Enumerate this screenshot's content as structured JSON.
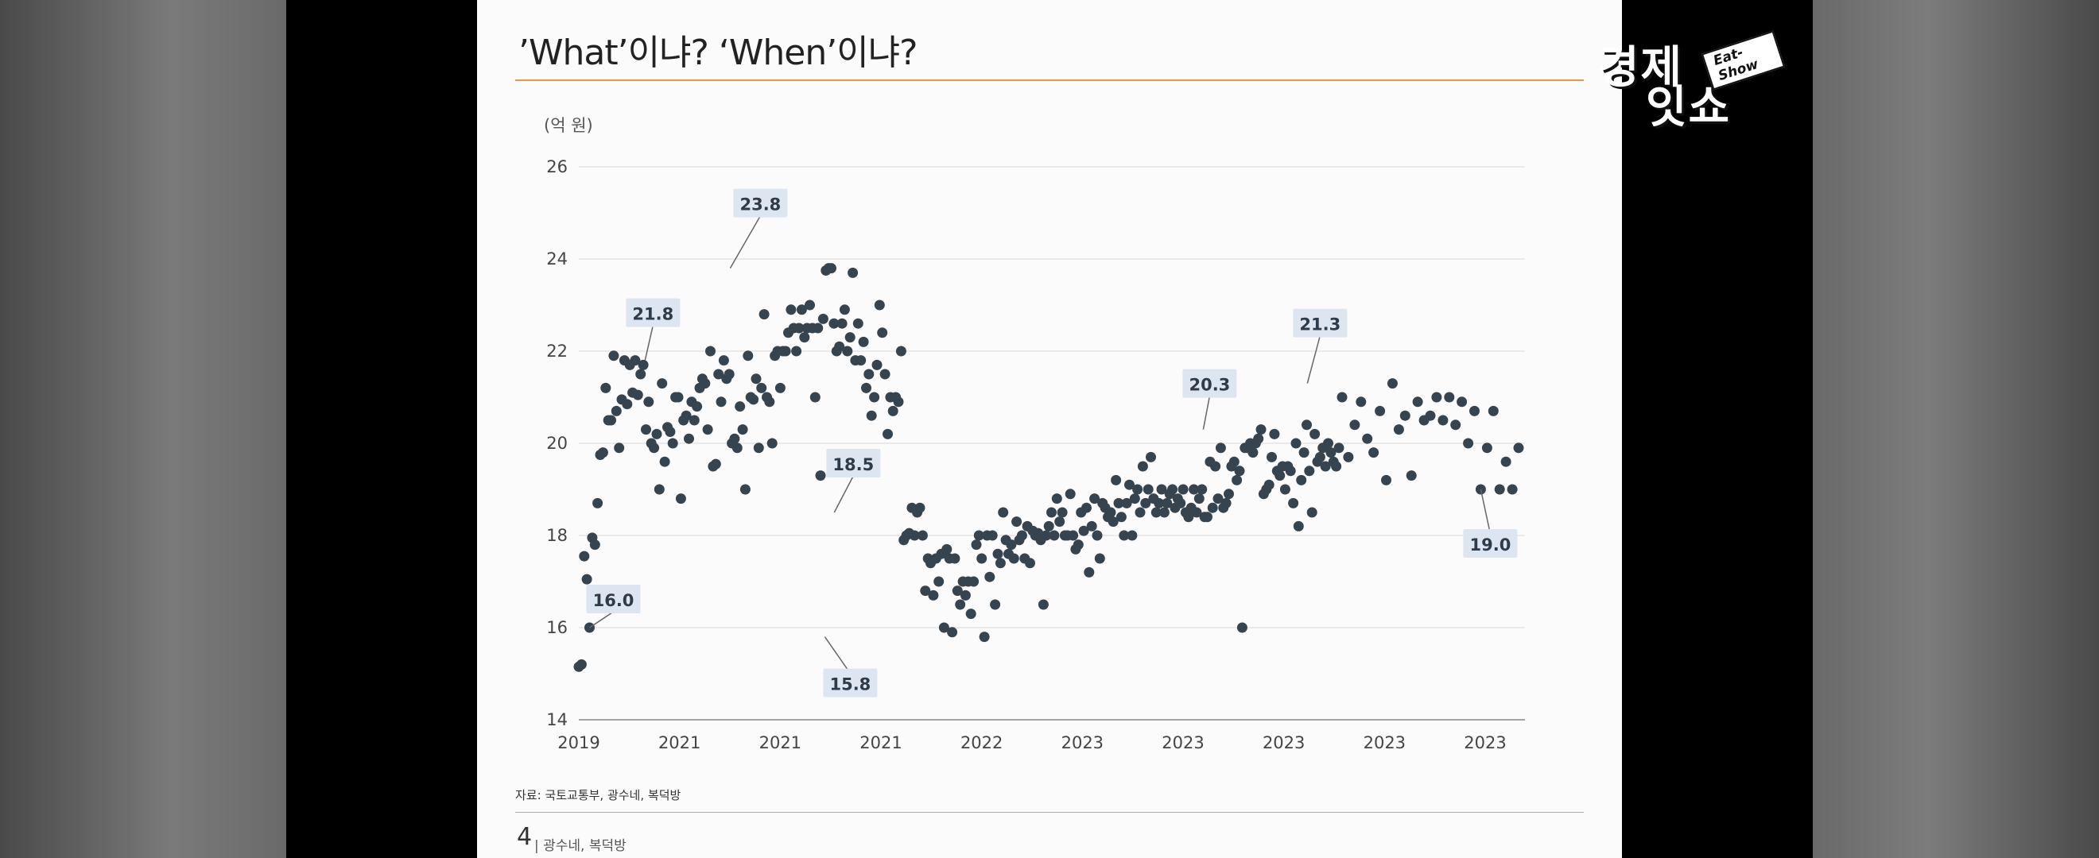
{
  "slide": {
    "title": "’What’이냐? ‘When’이냐?",
    "unit_label": "(억 원)",
    "source": "자료: 국토교통부, 광수네, 복덕방",
    "page_number": "4",
    "footer_text": "| 광수네, 복덕방"
  },
  "logo": {
    "line1": "경제",
    "line2": "잇쇼",
    "badge": "Eat-Show"
  },
  "colors": {
    "accent_rule": "#e39a4b",
    "point": "#36444f",
    "label_bg": "#dde5f1",
    "grid": "#d9d9d9"
  },
  "chart_data": {
    "type": "scatter",
    "title": "",
    "xlabel": "",
    "ylabel": "(억 원)",
    "ylim": [
      14,
      26
    ],
    "yticks": [
      14,
      16,
      18,
      20,
      22,
      24,
      26
    ],
    "xtick_labels": [
      "2019",
      "2021",
      "2021",
      "2021",
      "2022",
      "2023",
      "2023",
      "2023",
      "2023",
      "2023"
    ],
    "grid": "horizontal",
    "x_index_range": [
      0,
      288
    ],
    "points_y": [
      15.15,
      15.2,
      17.55,
      17.05,
      16.0,
      17.95,
      17.8,
      18.7,
      19.75,
      19.8,
      21.2,
      20.5,
      20.5,
      21.9,
      20.7,
      19.9,
      20.95,
      21.8,
      20.85,
      21.7,
      21.1,
      21.8,
      21.05,
      21.5,
      21.7,
      20.3,
      20.9,
      20.0,
      19.9,
      20.2,
      19.0,
      21.3,
      19.6,
      20.35,
      20.25,
      20.0,
      21.0,
      21.0,
      18.8,
      20.5,
      20.6,
      20.1,
      20.9,
      20.5,
      20.8,
      21.2,
      21.4,
      21.3,
      20.3,
      22.0,
      19.5,
      19.55,
      21.5,
      20.9,
      21.8,
      21.4,
      21.5,
      20.0,
      20.1,
      19.9,
      20.8,
      20.3,
      19.0,
      21.9,
      21.0,
      20.95,
      21.4,
      19.9,
      21.2,
      22.8,
      21.0,
      20.9,
      20.0,
      21.9,
      22.0,
      21.2,
      22.0,
      22.0,
      22.4,
      22.9,
      22.5,
      22.0,
      22.5,
      22.9,
      22.3,
      22.5,
      23.0,
      22.5,
      21.0,
      22.5,
      19.3,
      22.7,
      23.75,
      23.8,
      23.8,
      22.6,
      22.0,
      22.1,
      22.6,
      22.9,
      22.0,
      22.3,
      23.7,
      21.8,
      22.6,
      21.8,
      22.2,
      21.2,
      21.5,
      20.6,
      21.0,
      21.7,
      23.0,
      22.4,
      21.5,
      20.2,
      21.0,
      20.7,
      21.0,
      20.9,
      22.0,
      17.9,
      18.0,
      18.05,
      18.6,
      18.0,
      18.5,
      18.6,
      18.0,
      16.8,
      17.5,
      17.4,
      16.7,
      17.5,
      17.0,
      17.6,
      16.0,
      17.7,
      17.5,
      15.9,
      17.5,
      16.8,
      16.5,
      17.0,
      16.7,
      17.0,
      16.3,
      17.0,
      17.8,
      18.0,
      17.5,
      15.8,
      18.0,
      17.1,
      18.0,
      16.5,
      17.6,
      17.4,
      18.5,
      17.9,
      17.6,
      17.8,
      17.5,
      18.3,
      17.9,
      18.0,
      17.5,
      18.2,
      17.4,
      18.1,
      18.0,
      18.05,
      17.9,
      16.5,
      18.0,
      18.2,
      18.5,
      18.0,
      18.8,
      18.3,
      18.5,
      18.0,
      18.0,
      18.9,
      18.0,
      17.7,
      17.8,
      18.5,
      18.1,
      18.6,
      17.2,
      18.2,
      18.8,
      18.0,
      17.5,
      18.7,
      18.6,
      18.4,
      18.5,
      18.3,
      19.2,
      18.7,
      18.4,
      18.0,
      18.7,
      19.1,
      18.0,
      18.8,
      19.0,
      18.5,
      19.5,
      18.7,
      19.0,
      19.7,
      18.8,
      18.5,
      18.7,
      19.0,
      18.5,
      18.7,
      18.9,
      19.0,
      18.6,
      18.8,
      18.7,
      19.0,
      18.5,
      18.4,
      18.6,
      19.0,
      18.5,
      18.8,
      19.0,
      18.4,
      18.4,
      19.6,
      18.6,
      19.5,
      18.8,
      19.9,
      18.6,
      18.7,
      18.9,
      19.5,
      19.6,
      19.2,
      19.4,
      16.0,
      19.9,
      19.9,
      20.0,
      19.8,
      20.0,
      20.1,
      20.3,
      18.9,
      19.0,
      19.1,
      19.7,
      20.2,
      19.4,
      19.3,
      19.5,
      19.0,
      19.5,
      19.4,
      18.7,
      20.0,
      18.2,
      19.2,
      19.8,
      20.4,
      19.4,
      18.5,
      20.2,
      19.6,
      19.7,
      19.9,
      19.5,
      20.0,
      19.8,
      19.6,
      19.5,
      19.9
    ],
    "tail_points_y": [
      21.0,
      19.7,
      20.4,
      20.9,
      20.1,
      19.8,
      20.7,
      19.2,
      21.3,
      20.3,
      20.6,
      19.3,
      20.9,
      20.5,
      20.6,
      21.0,
      20.5,
      21.0,
      20.4,
      20.9,
      20.0,
      20.7,
      19.0,
      19.9,
      20.7,
      19.0,
      19.6,
      19.0,
      19.9
    ],
    "annotations": [
      {
        "label": "16.0",
        "value": 16.0
      },
      {
        "label": "21.8",
        "value": 21.8
      },
      {
        "label": "23.8",
        "value": 23.8
      },
      {
        "label": "18.5",
        "value": 18.5
      },
      {
        "label": "15.8",
        "value": 15.8
      },
      {
        "label": "20.3",
        "value": 20.3
      },
      {
        "label": "21.3",
        "value": 21.3
      },
      {
        "label": "19.0",
        "value": 19.0
      }
    ]
  }
}
